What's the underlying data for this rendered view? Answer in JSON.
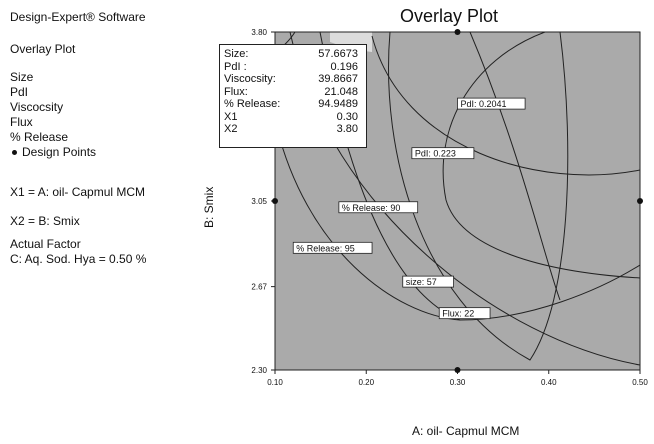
{
  "software": "Design-Expert® Software",
  "plot_name": "Overlay Plot",
  "responses": [
    "Size",
    "PdI",
    "Viscocsity",
    "Flux",
    "% Release"
  ],
  "design_points_label": "Design Points",
  "x1_label": "X1 = A: oil- Capmul MCM",
  "x2_label": "X2 = B: Smix",
  "actual_factor_heading": "Actual Factor",
  "actual_factor": "C: Aq. Sod. Hya = 0.50 %",
  "flag": [
    {
      "k": "Size:",
      "v": "57.6673"
    },
    {
      "k": "PdI :",
      "v": "0.196"
    },
    {
      "k": "Viscocsity:",
      "v": "39.8667"
    },
    {
      "k": "Flux:",
      "v": "21.048"
    },
    {
      "k": "% Release:",
      "v": "94.9489"
    },
    {
      "k": "X1",
      "v": "0.30"
    },
    {
      "k": "X2",
      "v": "3.80"
    }
  ],
  "chart_data": {
    "type": "contour-overlay",
    "title": "Overlay Plot",
    "xlabel": "A: oil- Capmul MCM",
    "ylabel": "B: Smix",
    "xlim": [
      0.1,
      0.5
    ],
    "ylim": [
      2.3,
      3.8
    ],
    "x_ticks": [
      "0.10",
      "0.20",
      "0.30",
      "0.40",
      "0.50"
    ],
    "y_ticks": [
      "2.30",
      "2.67",
      "3.05",
      "3.80"
    ],
    "design_points": [
      {
        "x": 0.3,
        "y": 3.8
      },
      {
        "x": 0.1,
        "y": 3.05
      },
      {
        "x": 0.5,
        "y": 3.05
      },
      {
        "x": 0.3,
        "y": 2.3
      }
    ],
    "contour_labels": [
      {
        "text": "PdI: 0.2041",
        "x": 0.3,
        "y": 3.48
      },
      {
        "text": "PdI: 0.223",
        "x": 0.25,
        "y": 3.26
      },
      {
        "text": "% Release: 90",
        "x": 0.17,
        "y": 3.02
      },
      {
        "text": "% Release: 95",
        "x": 0.12,
        "y": 2.84
      },
      {
        "text": "size: 57",
        "x": 0.24,
        "y": 2.69
      },
      {
        "text": "Flux: 22",
        "x": 0.28,
        "y": 2.55
      }
    ],
    "colors": {
      "region": "#aaaaaa",
      "feasible": "#dcdcdc",
      "lines": "#222222"
    }
  }
}
